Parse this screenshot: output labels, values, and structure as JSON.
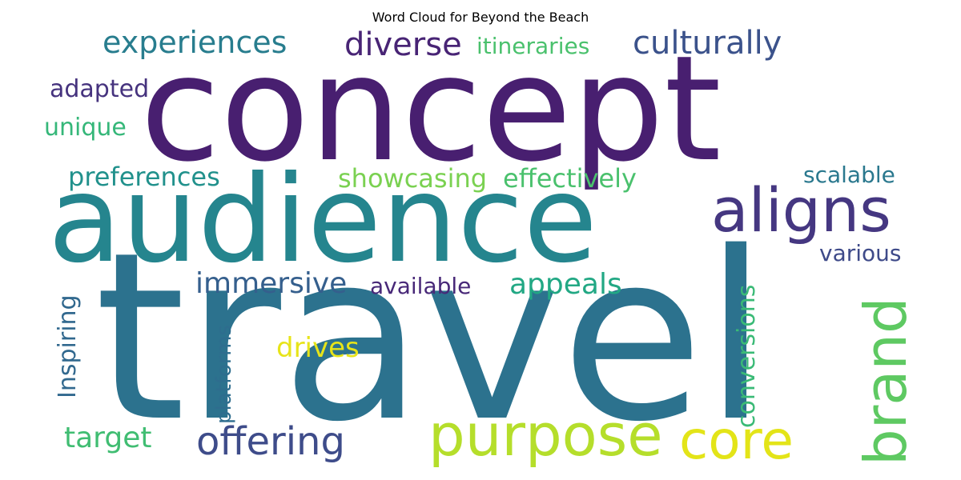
{
  "title": "Word Cloud for Beyond the Beach",
  "chart_data": {
    "type": "wordcloud",
    "title": "Word Cloud for Beyond the Beach",
    "words": [
      {
        "text": "concept",
        "color": "#481f70"
      },
      {
        "text": "travel",
        "color": "#2c728e"
      },
      {
        "text": "audience",
        "color": "#25858e"
      },
      {
        "text": "aligns",
        "color": "#453781"
      },
      {
        "text": "purpose",
        "color": "#b5de2b"
      },
      {
        "text": "core",
        "color": "#e3e418"
      },
      {
        "text": "brand",
        "color": "#5ec962"
      },
      {
        "text": "offering",
        "color": "#3e4c8a"
      },
      {
        "text": "experiences",
        "color": "#287d8e"
      },
      {
        "text": "diverse",
        "color": "#482475"
      },
      {
        "text": "culturally",
        "color": "#3b528b"
      },
      {
        "text": "itineraries",
        "color": "#4ac16d"
      },
      {
        "text": "adapted",
        "color": "#46337e"
      },
      {
        "text": "unique",
        "color": "#35b779"
      },
      {
        "text": "preferences",
        "color": "#21918c"
      },
      {
        "text": "showcasing",
        "color": "#7ad151"
      },
      {
        "text": "effectively",
        "color": "#4ac16d"
      },
      {
        "text": "scalable",
        "color": "#2a788e"
      },
      {
        "text": "various",
        "color": "#3e4a89"
      },
      {
        "text": "immersive",
        "color": "#355f8d"
      },
      {
        "text": "available",
        "color": "#482878"
      },
      {
        "text": "appeals",
        "color": "#22a884"
      },
      {
        "text": "conversions",
        "color": "#3aba76"
      },
      {
        "text": "Inspiring",
        "color": "#31688e"
      },
      {
        "text": "platforms",
        "color": "#2e6d8e"
      },
      {
        "text": "drives",
        "color": "#e7e419"
      },
      {
        "text": "target",
        "color": "#40bd72"
      }
    ]
  }
}
